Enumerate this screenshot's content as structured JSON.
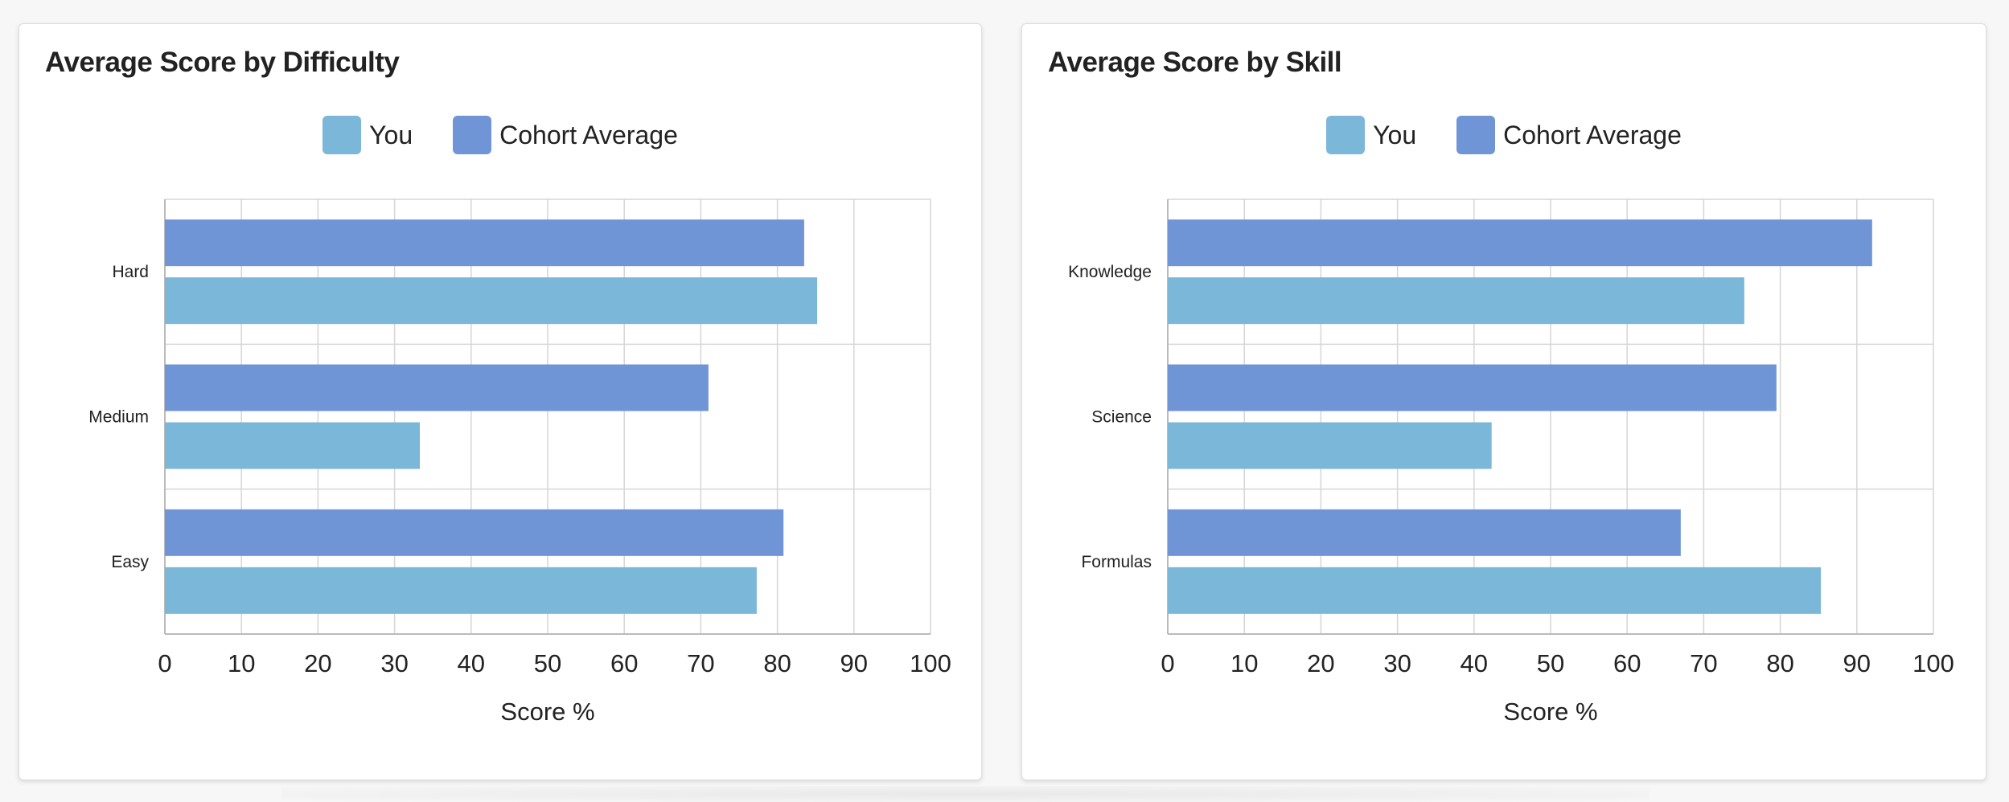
{
  "colors": {
    "you": "#7bb7d8",
    "cohort": "#6f95d6",
    "grid": "#d6d6d6",
    "axis": "#bbbbbb",
    "text": "#222222"
  },
  "legend": {
    "you": "You",
    "cohort": "Cohort Average"
  },
  "charts": [
    {
      "title": "Average Score by Difficulty",
      "chart_data": {
        "type": "bar",
        "orientation": "horizontal",
        "title": "Average Score by Difficulty",
        "xlabel": "Score %",
        "xlim": [
          0,
          100
        ],
        "xticks": [
          "0",
          "10",
          "20",
          "30",
          "40",
          "50",
          "60",
          "70",
          "80",
          "90",
          "100"
        ],
        "grid": true,
        "legend_position": "top-center",
        "categories": [
          "Hard",
          "Medium",
          "Easy"
        ],
        "series": [
          {
            "name": "Cohort Average",
            "values": [
              83.5,
              71,
              80.8
            ]
          },
          {
            "name": "You",
            "values": [
              85.2,
              33.3,
              77.3
            ]
          }
        ]
      }
    },
    {
      "title": "Average Score by Skill",
      "chart_data": {
        "type": "bar",
        "orientation": "horizontal",
        "title": "Average Score by Skill",
        "xlabel": "Score %",
        "xlim": [
          0,
          100
        ],
        "xticks": [
          "0",
          "10",
          "20",
          "30",
          "40",
          "50",
          "60",
          "70",
          "80",
          "90",
          "100"
        ],
        "grid": true,
        "legend_position": "top-center",
        "categories": [
          "Knowledge",
          "Science",
          "Formulas"
        ],
        "series": [
          {
            "name": "Cohort Average",
            "values": [
              92,
              79.5,
              67
            ]
          },
          {
            "name": "You",
            "values": [
              75.3,
              42.3,
              85.3
            ]
          }
        ]
      }
    }
  ]
}
